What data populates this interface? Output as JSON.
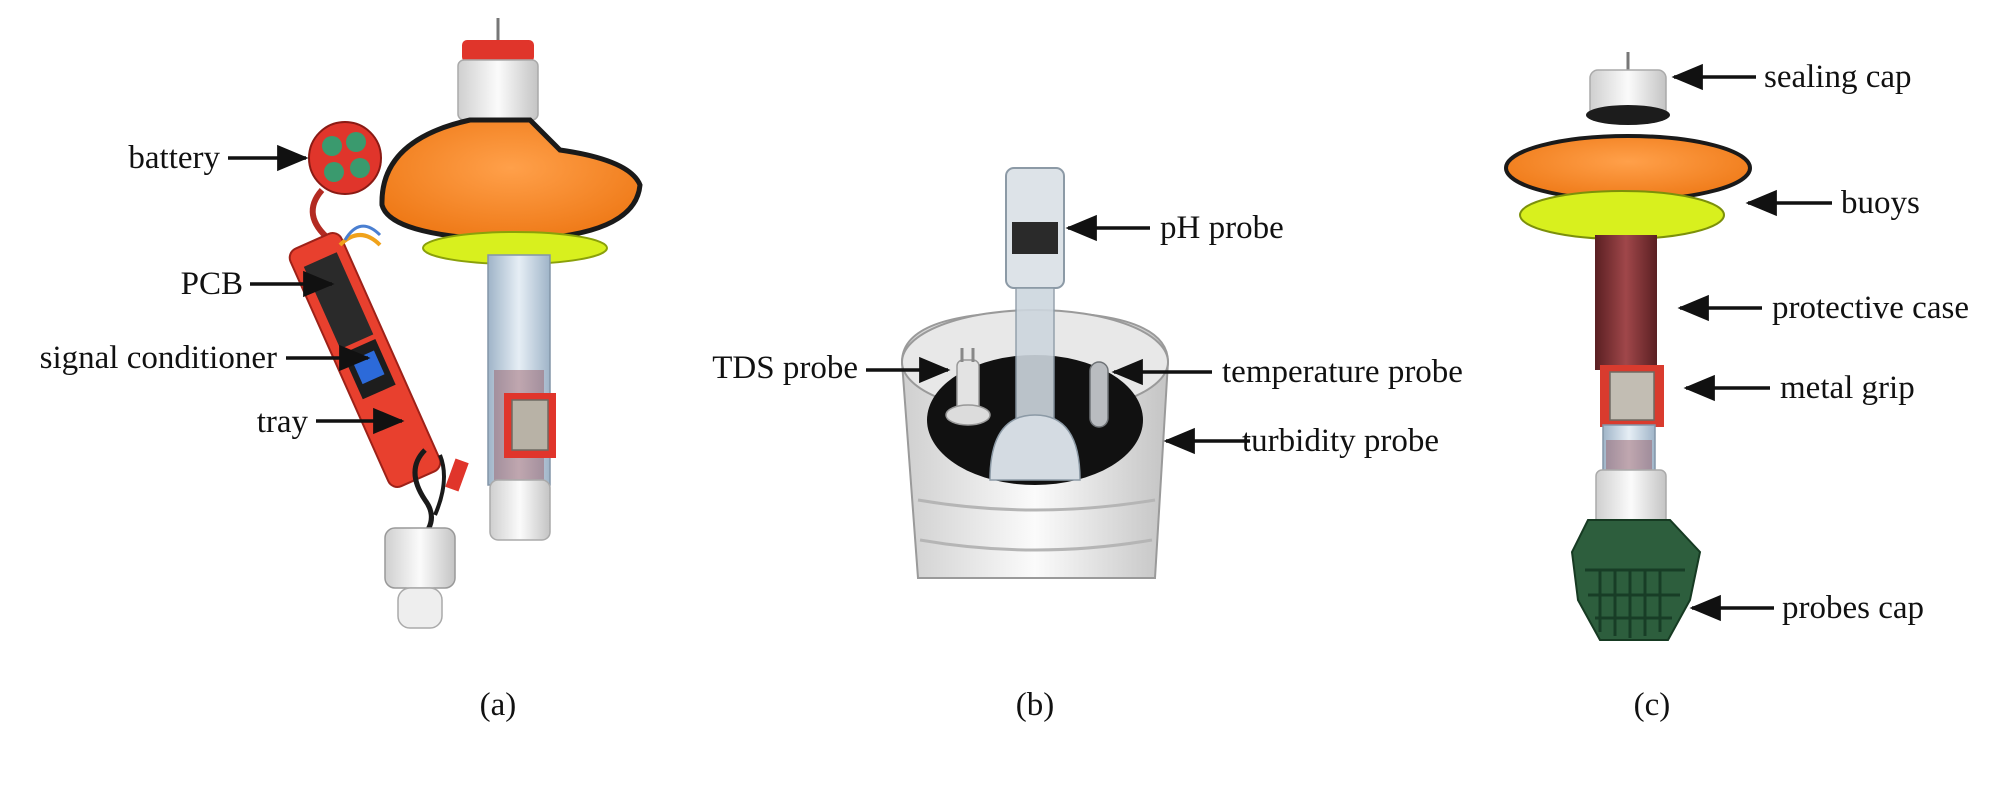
{
  "panel_a": {
    "caption": "(a)",
    "labels": {
      "battery": "battery",
      "pcb": "PCB",
      "signal_conditioner": "signal conditioner",
      "tray": "tray"
    }
  },
  "panel_b": {
    "caption": "(b)",
    "labels": {
      "ph_probe": "pH probe",
      "tds_probe": "TDS probe",
      "temperature_probe": "temperature probe",
      "turbidity_probe": "turbidity probe"
    }
  },
  "panel_c": {
    "caption": "(c)",
    "labels": {
      "sealing_cap": "sealing cap",
      "buoys": "buoys",
      "protective_case": "protective case",
      "metal_grip": "metal grip",
      "probes_cap": "probes cap"
    }
  }
}
